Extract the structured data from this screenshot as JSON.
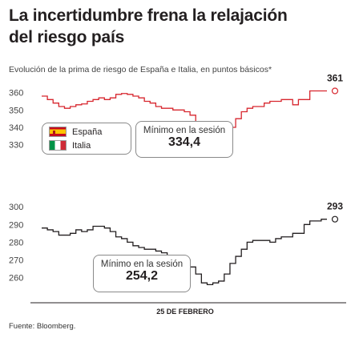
{
  "headline": "La incertidumbre frena la relajación del riesgo país",
  "subtitle": "Evolución de la prima de riesgo de España e Italia, en puntos básicos*",
  "source": "Fuente: Bloomberg.",
  "legend": {
    "spain": "España",
    "italy": "Italia"
  },
  "min_spain": {
    "label": "Mínimo en la sesión",
    "value": "334,4"
  },
  "min_italy": {
    "label": "Mínimo en la sesión",
    "value": "254,2"
  },
  "colors": {
    "spain": "#d7262e",
    "italy": "#231f20",
    "axis": "#231f20"
  },
  "chart_data": [
    {
      "type": "line",
      "series": [
        {
          "name": "España",
          "color": "#d7262e",
          "x": [
            0,
            2,
            4,
            6,
            8,
            10,
            12,
            14,
            16,
            18,
            20,
            22,
            24,
            26,
            28,
            30,
            32,
            34,
            36,
            38,
            40,
            42,
            44,
            46,
            48,
            50,
            52,
            54,
            56,
            58,
            60,
            62,
            64,
            66,
            68,
            70,
            72,
            74,
            76,
            78,
            80,
            82,
            84,
            86,
            88,
            90,
            92,
            94,
            96,
            98,
            100
          ],
          "values": [
            358,
            356,
            354,
            352,
            351,
            352,
            353,
            353.5,
            355,
            356,
            357,
            356,
            357,
            359,
            359.5,
            359,
            358,
            357,
            355,
            354,
            352,
            351,
            351,
            350,
            350,
            349,
            347,
            343,
            339,
            336,
            335,
            336,
            338,
            340,
            345,
            349,
            351,
            352,
            352,
            354,
            355,
            355,
            356,
            356,
            353,
            356,
            356,
            361,
            361,
            361,
            361
          ]
        }
      ],
      "yticks": [
        330,
        340,
        350,
        360
      ],
      "ylim": [
        328,
        364
      ],
      "end_label": "361",
      "xlabel": ""
    },
    {
      "type": "line",
      "series": [
        {
          "name": "Italia",
          "color": "#231f20",
          "x": [
            0,
            2,
            4,
            6,
            8,
            10,
            12,
            14,
            16,
            18,
            20,
            22,
            24,
            26,
            28,
            30,
            32,
            34,
            36,
            38,
            40,
            42,
            44,
            46,
            48,
            50,
            52,
            54,
            56,
            58,
            60,
            62,
            64,
            66,
            68,
            70,
            72,
            74,
            76,
            78,
            80,
            82,
            84,
            86,
            88,
            90,
            92,
            94,
            96,
            98,
            100
          ],
          "values": [
            288,
            287,
            286,
            284,
            284,
            285,
            287,
            286,
            287,
            289,
            289,
            288,
            286,
            283,
            282,
            280,
            278,
            277,
            276,
            276,
            275,
            274,
            271,
            270,
            270,
            270,
            266,
            262,
            257,
            256,
            257,
            258,
            262,
            268,
            272,
            276,
            280,
            281,
            281,
            281,
            280,
            282,
            283,
            283,
            285,
            285,
            290,
            292,
            292,
            293,
            293
          ]
        }
      ],
      "yticks": [
        260,
        270,
        280,
        290,
        300
      ],
      "ylim": [
        253,
        301
      ],
      "end_label": "293",
      "xlabel": "25 DE FEBRERO"
    }
  ]
}
